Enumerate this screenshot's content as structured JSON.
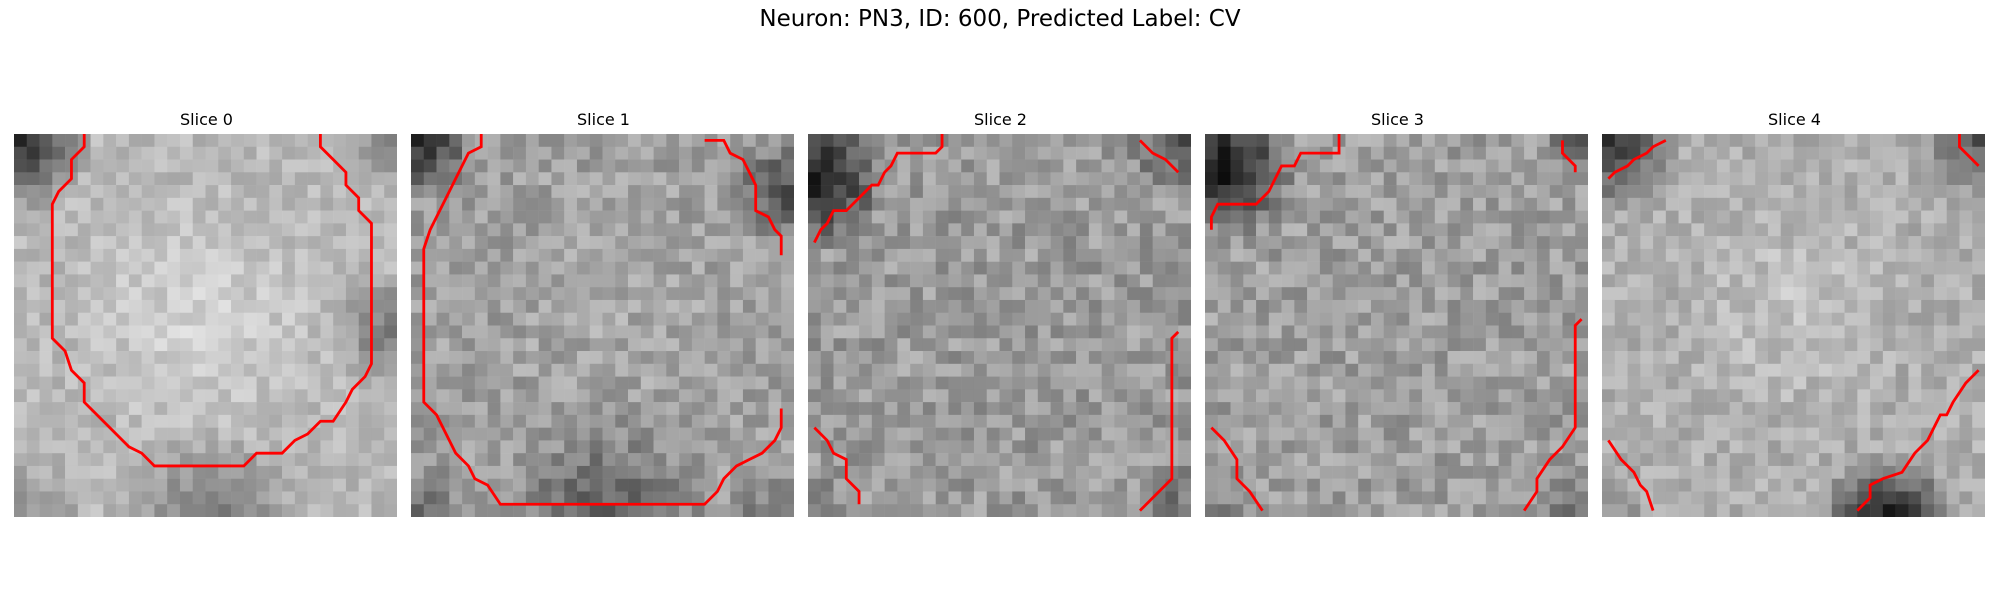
{
  "figure": {
    "title": "Neuron: PN3, ID: 600, Predicted Label: CV",
    "panels": [
      {
        "title": "Slice 0",
        "contour_color": "#ff0000"
      },
      {
        "title": "Slice 1",
        "contour_color": "#ff0000"
      },
      {
        "title": "Slice 2",
        "contour_color": "#ff0000"
      },
      {
        "title": "Slice 3",
        "contour_color": "#ff0000"
      },
      {
        "title": "Slice 4",
        "contour_color": "#ff0000"
      }
    ]
  }
}
